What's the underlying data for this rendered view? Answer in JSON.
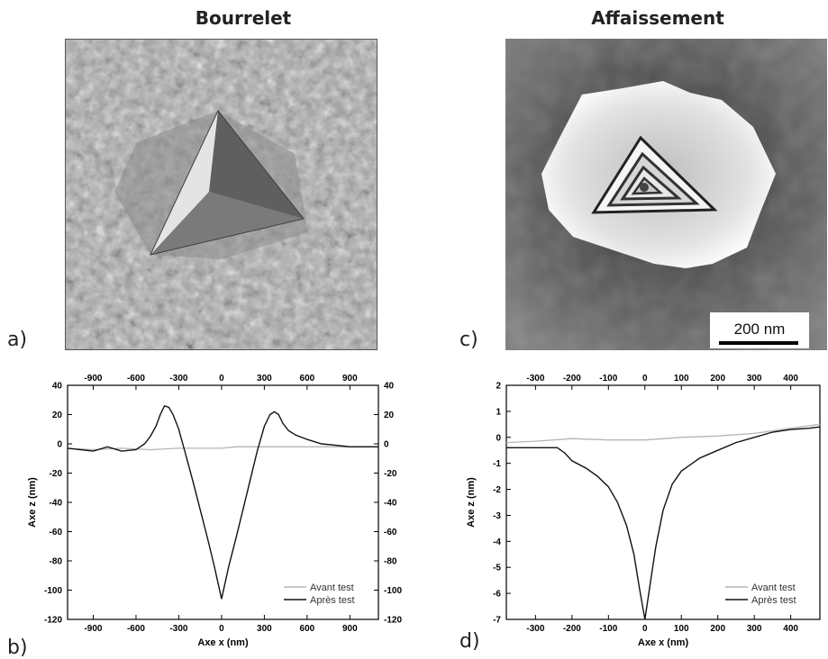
{
  "headings": {
    "left": "Bourrelet",
    "right": "Affaissement"
  },
  "panel_letters": {
    "a": "a)",
    "b": "b)",
    "c": "c)",
    "d": "d)"
  },
  "scale_bar_label": "200 nm",
  "chart_data": [
    {
      "type": "line",
      "panel": "b)",
      "xlabel": "Axe x (nm)",
      "ylabel": "Axe z (nm)",
      "xlim": [
        -1080,
        1100
      ],
      "ylim": [
        -120,
        40
      ],
      "xticks": [
        -900,
        -600,
        -300,
        0,
        300,
        600,
        900
      ],
      "yticks": [
        -120,
        -100,
        -80,
        -60,
        -40,
        -20,
        0,
        20,
        40
      ],
      "legend": "bottom-right",
      "series": [
        {
          "name": "Avant test",
          "color": "#b5b5b5",
          "x": [
            -1080,
            -900,
            -700,
            -500,
            -300,
            -100,
            0,
            100,
            300,
            500,
            700,
            900,
            1100
          ],
          "y": [
            -3,
            -4,
            -3,
            -4,
            -3,
            -3,
            -3,
            -2,
            -2,
            -2,
            -2,
            -2,
            -2
          ]
        },
        {
          "name": "Après test",
          "color": "#111111",
          "x": [
            -1080,
            -900,
            -800,
            -700,
            -600,
            -540,
            -500,
            -460,
            -430,
            -400,
            -370,
            -340,
            -300,
            -250,
            -200,
            -150,
            -100,
            -50,
            0,
            50,
            100,
            150,
            200,
            250,
            300,
            340,
            370,
            400,
            430,
            470,
            520,
            600,
            700,
            800,
            900,
            1000,
            1100
          ],
          "y": [
            -3,
            -5,
            -2,
            -5,
            -4,
            0,
            5,
            12,
            20,
            26,
            25,
            20,
            10,
            -8,
            -26,
            -45,
            -64,
            -84,
            -106,
            -84,
            -65,
            -45,
            -25,
            -5,
            12,
            20,
            22,
            20,
            14,
            9,
            6,
            3,
            0,
            -1,
            -2,
            -2,
            -2
          ]
        }
      ]
    },
    {
      "type": "line",
      "panel": "d)",
      "xlabel": "Axe x (nm)",
      "ylabel": "Axe z (nm)",
      "xlim": [
        -380,
        480
      ],
      "ylim": [
        -7,
        2
      ],
      "xticks": [
        -300,
        -200,
        -100,
        0,
        100,
        200,
        300,
        400
      ],
      "yticks": [
        -7,
        -6,
        -5,
        -4,
        -3,
        -2,
        -1,
        0,
        1,
        2
      ],
      "legend": "bottom-right",
      "series": [
        {
          "name": "Avant test",
          "color": "#b5b5b5",
          "x": [
            -380,
            -300,
            -200,
            -100,
            0,
            100,
            200,
            300,
            400,
            480
          ],
          "y": [
            -0.2,
            -0.15,
            -0.05,
            -0.1,
            -0.1,
            0.0,
            0.05,
            0.15,
            0.35,
            0.5
          ]
        },
        {
          "name": "Après test",
          "color": "#111111",
          "x": [
            -380,
            -300,
            -240,
            -220,
            -200,
            -160,
            -130,
            -100,
            -75,
            -50,
            -30,
            -15,
            0,
            15,
            30,
            50,
            75,
            100,
            150,
            200,
            250,
            300,
            350,
            400,
            450,
            480
          ],
          "y": [
            -0.4,
            -0.4,
            -0.4,
            -0.6,
            -0.9,
            -1.2,
            -1.5,
            -1.9,
            -2.5,
            -3.4,
            -4.5,
            -5.8,
            -7.0,
            -5.6,
            -4.2,
            -2.8,
            -1.8,
            -1.3,
            -0.8,
            -0.5,
            -0.2,
            0.0,
            0.2,
            0.3,
            0.35,
            0.4
          ]
        }
      ]
    }
  ]
}
